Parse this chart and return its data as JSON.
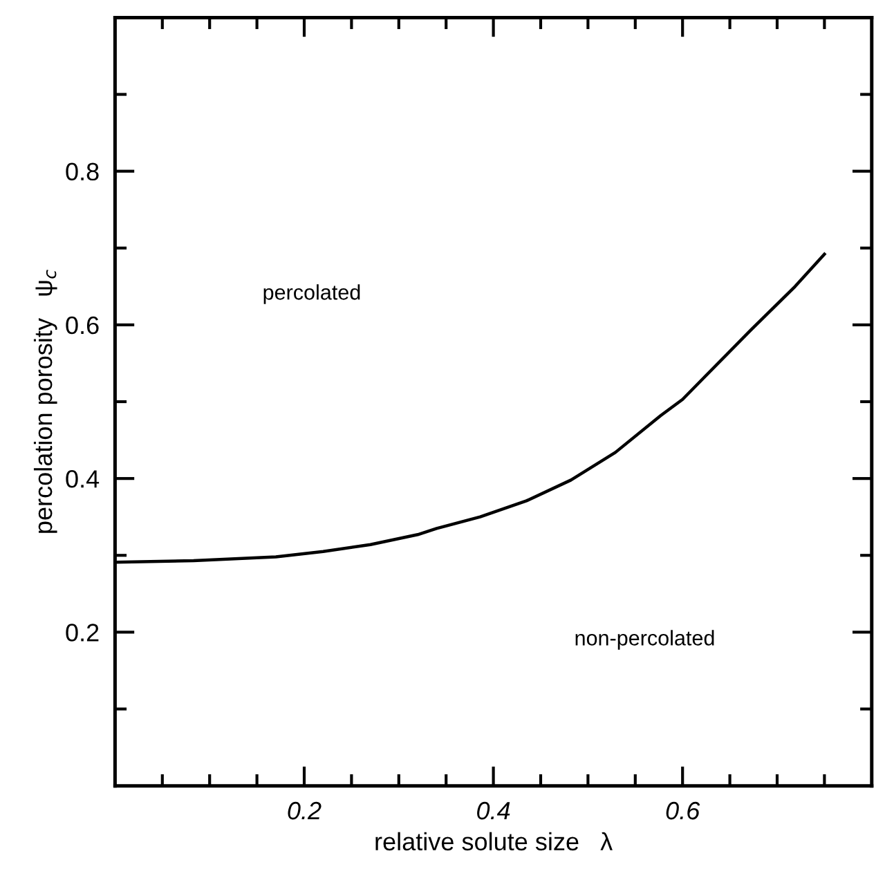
{
  "chart_data": {
    "type": "line",
    "xlabel": "relative solute size   λ",
    "ylabel": "percolation porosity   ψ$_{c}$",
    "x": [
      0.0,
      0.083,
      0.17,
      0.22,
      0.27,
      0.32,
      0.34,
      0.386,
      0.435,
      0.482,
      0.529,
      0.577,
      0.6,
      0.672,
      0.719,
      0.75
    ],
    "series": [
      {
        "color": "#000000",
        "values": [
          0.291,
          0.293,
          0.298,
          0.305,
          0.314,
          0.327,
          0.335,
          0.35,
          0.371,
          0.398,
          0.434,
          0.482,
          0.503,
          0.593,
          0.65,
          0.692
        ]
      }
    ],
    "xlim": [
      0,
      0.8
    ],
    "ylim": [
      0,
      1.0
    ],
    "xticks": [
      {
        "value": 0.05,
        "label": null
      },
      {
        "value": 0.1,
        "label": null
      },
      {
        "value": 0.15,
        "label": null
      },
      0.2,
      {
        "value": 0.25,
        "label": null
      },
      {
        "value": 0.3,
        "label": null
      },
      {
        "value": 0.35,
        "label": null
      },
      0.4,
      {
        "value": 0.45,
        "label": null
      },
      {
        "value": 0.5,
        "label": null
      },
      {
        "value": 0.55,
        "label": null
      },
      0.6,
      {
        "value": 0.65,
        "label": null
      },
      {
        "value": 0.7,
        "label": null
      },
      {
        "value": 0.75,
        "label": null
      }
    ],
    "yticks": [
      {
        "value": 0.1,
        "label": null
      },
      0.2,
      {
        "value": 0.3,
        "label": null
      },
      0.4,
      {
        "value": 0.5,
        "label": null
      },
      0.6,
      {
        "value": 0.7,
        "label": null
      },
      0.8,
      {
        "value": 0.9,
        "label": null
      }
    ],
    "annotations": [
      "percolated",
      "non-percolated"
    ],
    "grid": false,
    "legend": false,
    "marker": "none",
    "line_style": "solid"
  }
}
